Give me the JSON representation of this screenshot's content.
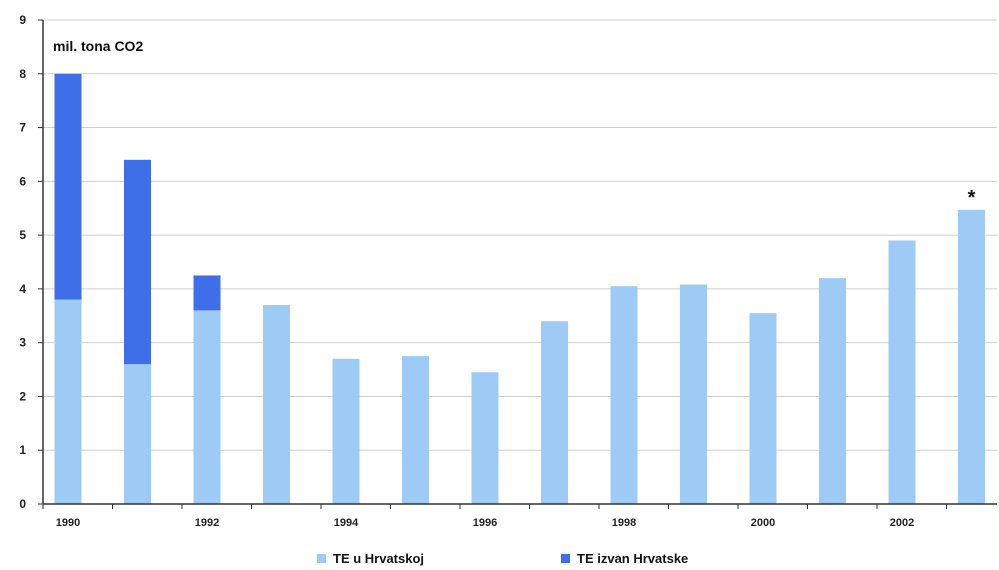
{
  "chart_data": {
    "type": "bar",
    "stacked": true,
    "unit_label": "mil. tona CO2",
    "x": [
      1990,
      1991,
      1992,
      1993,
      1994,
      1995,
      1996,
      1997,
      1998,
      1999,
      2000,
      2001,
      2002,
      2003
    ],
    "x_tick_labels": [
      "1990",
      "",
      "1992",
      "",
      "1994",
      "",
      "1996",
      "",
      "1998",
      "",
      "2000",
      "",
      "2002",
      ""
    ],
    "series": [
      {
        "name": "TE u Hrvatskoj",
        "color": "#9dcbf6",
        "values": [
          3.8,
          2.6,
          3.6,
          3.7,
          2.7,
          2.75,
          2.45,
          3.4,
          4.05,
          4.08,
          3.55,
          4.2,
          4.9,
          5.47
        ]
      },
      {
        "name": "TE izvan Hrvatske",
        "color": "#3e6fe9",
        "values": [
          4.2,
          3.8,
          0.65,
          0,
          0,
          0,
          0,
          0,
          0,
          0,
          0,
          0,
          0,
          0
        ]
      }
    ],
    "ylim": [
      0,
      9
    ],
    "yticks": [
      "0",
      "1",
      "2",
      "3",
      "4",
      "5",
      "6",
      "7",
      "8",
      "9"
    ],
    "grid": true,
    "legend_position": "bottom",
    "annotations": [
      {
        "text": "*",
        "x": 2003
      }
    ]
  }
}
